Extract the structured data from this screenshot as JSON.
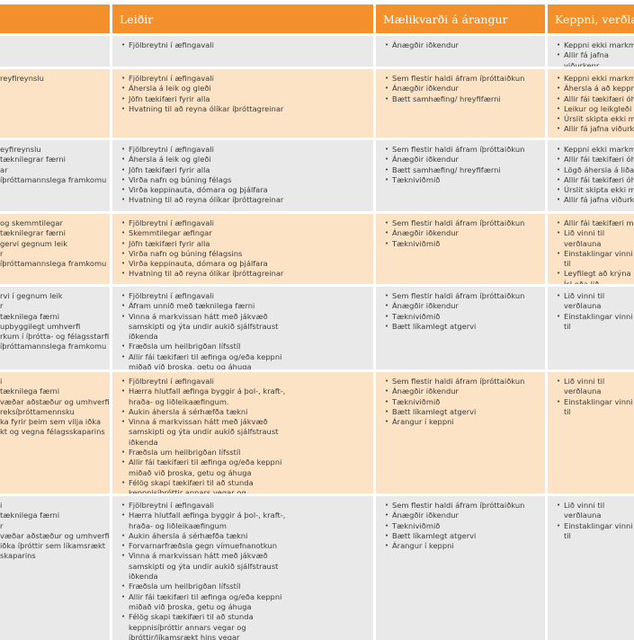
{
  "table": {
    "header": [
      "Leiðir",
      "Mælikvarði á árangur",
      "Keppni, verðlaun"
    ],
    "rows": [
      [
        [],
        [
          "Fjölbreytni í æfingavali"
        ],
        [
          "Ánægðir iðkendur"
        ],
        [
          "Keppni ekki markmi",
          "Allir fá jafna viðurkenr"
        ]
      ],
      [
        [
          "reyfireynslu"
        ],
        [
          "Fjölbreytni í æfingavali",
          "Áhersla á leik og gleði",
          "Jöfn tækifæri fyrir alla",
          "Hvatning til að reyna ólíkar íþróttagreinar"
        ],
        [
          "Sem flestir haldi áfram íþróttaiðkun",
          "Ánægðir iðkendur",
          "Bætt samhæfing/ hreyfifærni"
        ],
        [
          "Keppni ekki markmi",
          "Áhersla á að keppni f",
          "Allir fái tækifæri óhá",
          "Leikur og leikgleði",
          "Úrslit skipta ekki má",
          "Allir fá jafna viðurke"
        ]
      ],
      [
        [
          "eyfireynslu",
          "tæknilegrar færni",
          "ar",
          "íþróttamannslega framkomu"
        ],
        [
          "Fjölbreytni í æfingavali",
          "Áhersla á leik og gleði",
          "Jöfn tækifæri  fyrir alla",
          "Virða nafn og búning félags",
          "Virða keppinauta, dómara og þjálfara",
          "Hvatning til að reyna ólíkar íþróttagreinar"
        ],
        [
          "Sem flestir haldi áfram íþróttaiðkun",
          "Ánægðir iðkendur",
          "Bætt samhæfing/ hreyfifærni",
          "Tækniviðmið"
        ],
        [
          "Keppni ekki markmi",
          "Allir fái tækifæri óhá",
          "Lögð áhersla á liðake",
          "Allir fái tækifæri óhá",
          "Úrslit skipta ekki má",
          "Allir fá jafna viðurke"
        ]
      ],
      [
        [
          "og skemmtilegar",
          "tæknilegrar færni",
          "gervi gegnum leik",
          "r",
          "íþróttamannslega framkomu"
        ],
        [
          "Fjölbreytni í æfingavali",
          "Skemmtilegar æfingar",
          "Jöfn tækifæri fyrir alla",
          "Virða nafn og búning félagsins",
          "Virða keppinauta, dómara og þjálfara",
          "Hvatning til að reyna ólíkar íþróttagreinar"
        ],
        [
          "Sem flestir haldi áfram íþróttaiðkun",
          "Ánægðir iðkendur",
          "Tækniviðmið"
        ],
        [
          "Allir fái tækifæri mið",
          "Lið vinni til verðlauna",
          "Einstaklingar vinni til",
          "Leyfilegt að krýna Ísl eða lið"
        ]
      ],
      [
        [
          "rvi í gegnum leik",
          "r",
          "tæknilega færni",
          "upbyggilegt umhverfi",
          "rkum í íþrótta- og félagsstarfi",
          "íþróttamannslega framkomu"
        ],
        [
          "Fjölbreytni í æfingavali",
          "Áfram unnið með tæknilega færni",
          "Vinna á markvissan hátt með jákvæð samskipti og ýta undir aukið sjálfstraust iðkenda",
          "Fræðsla um heilbrigðan lífsstíl",
          "Allir fái tækifæri til æfinga og/eða keppni miðað við þroska, getu og áhuga"
        ],
        [
          "Sem flestir haldi áfram íþróttaiðkun",
          "Ánægðir iðkendur",
          "Tækniviðmið",
          "Bætt líkamlegt atgervi"
        ],
        [
          "Lið vinni til verðlauna",
          "Einstaklingar vinni til"
        ]
      ],
      [
        [
          "i",
          "tæknilega færni",
          "væðar aðstæður og umhverfi",
          "reksíþróttamennsku",
          "ka fyrir þeim sem vilja iðka",
          "kt og vegna félagsskaparins"
        ],
        [
          "Fjölbreytni í æfingavali",
          "Hærra hlutfall æfinga byggir á þol-, kraft-, hraða- og liðleikaæfingum.",
          "Aukin áhersla á sérhæfða tækni",
          "Vinna á markvissan hátt með jákvæð samskipti og ýta undir aukið sjálfstraust iðkenda",
          "Fræðsla um heilbrigðan lífsstíl",
          "Allir fái tækifæri til æfinga og/eða keppni miðað við þroska, getu og áhuga",
          "Félög skapi tækifæri til að stunda keppnisíþróttir annars vegar og íþróttir/líkamsrækt hins vegar"
        ],
        [
          "Sem flestir haldi áfram íþróttaiðkun",
          "Ánægðir iðkendur",
          "Tækniviðmið",
          "Bætt líkamlegt atgervi",
          "Árangur í keppni"
        ],
        [
          "Lið vinni til verðlauna",
          "Einstaklingar vinni til"
        ]
      ],
      [
        [
          "i",
          "tæknilega færni",
          "r",
          "væðar aðstæður og umhverfi",
          "iðka íþróttir sem líkamsrækt",
          "skaparins"
        ],
        [
          "Fjölbreytni í æfingavali",
          "Hærra hlutfall æfinga byggir á þol-, kraft-, hraða- og liðleikaæfingum",
          "Aukin áhersla á sérhæfða tækni",
          "Forvarnarfræðsla gegn vímuefnanotkun",
          "Vinna á markvissan hátt með jákvæð samskipti og ýta undir aukið sjálfstraust iðkenda",
          "Fræðsla um heilbrigðan lífsstíl",
          "Allir fái tækifæri til æfinga og/eða keppni miðað við þroska, getu og áhuga",
          "Félög skapi tækifæri til að stunda keppnisíþróttir annars vegar og íþróttir/líkamsrækt hins vegar"
        ],
        [
          "Sem flestir haldi áfram íþróttaiðkun",
          "Ánægðir iðkendur",
          "Tækniviðmið",
          "Bætt líkamlegt atgervi",
          "Árangur í keppni"
        ],
        [
          "Lið vinni til verðlauna",
          "Einstaklingar vinni til"
        ]
      ]
    ]
  }
}
